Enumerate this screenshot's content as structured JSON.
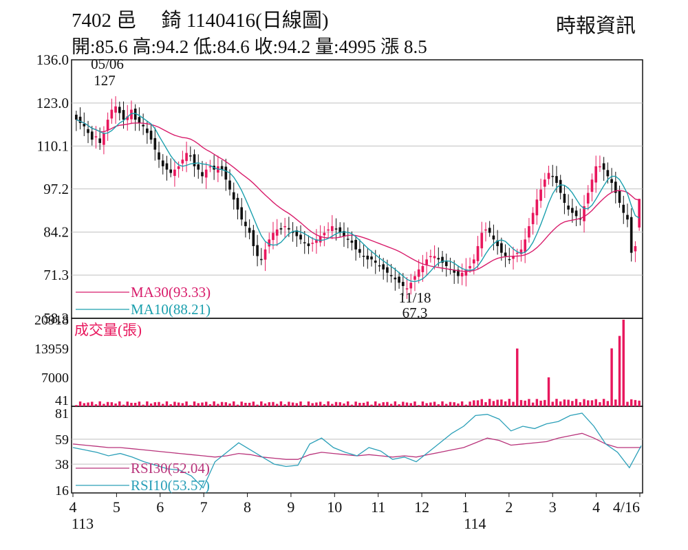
{
  "header": {
    "title": "7402 邑　 錡 1140416(日線圖)",
    "quote": "開:85.6 高:94.2 低:84.6 收:94.2 量:4995 漲 8.5",
    "source": "時報資訊"
  },
  "colors": {
    "up": "#e8175d",
    "down": "#111111",
    "ma30": "#d81b6a",
    "ma10": "#1a9fad",
    "grid": "#bfbfbf",
    "volume": "#e8175d",
    "rsi30": "#b8327a",
    "rsi10": "#2a9fb8"
  },
  "chart_data": [
    {
      "type": "candlestick",
      "panel": "price",
      "ylim": [
        58.3,
        136.0
      ],
      "yticks": [
        "136.0",
        "123.0",
        "110.1",
        "97.2",
        "84.2",
        "71.3",
        "58.3"
      ],
      "grid": true,
      "annotations": [
        {
          "date": "05/06",
          "value": "127"
        },
        {
          "date": "11/18",
          "value": "67.3"
        }
      ],
      "legend": [
        "MA30(93.33)",
        "MA10(88.21)"
      ],
      "last_bar": {
        "open": 85.6,
        "high": 94.2,
        "low": 84.6,
        "close": 94.2
      },
      "close_series": [
        118,
        117,
        116,
        114,
        112,
        113,
        111,
        114,
        118,
        121,
        122,
        120,
        118,
        119,
        121,
        118,
        117,
        116,
        114,
        112,
        109,
        106,
        104,
        103,
        102,
        103,
        104,
        106,
        108,
        107,
        104,
        103,
        101,
        103,
        104,
        103,
        104,
        103,
        100,
        97,
        94,
        91,
        88,
        86,
        84,
        80,
        77,
        76,
        79,
        82,
        84,
        85,
        85,
        86,
        85,
        84,
        83,
        82,
        81,
        80,
        81,
        82,
        83,
        84,
        85,
        86,
        85,
        84,
        83,
        82,
        81,
        79,
        78,
        77,
        76,
        76,
        75,
        74,
        73,
        72,
        71,
        70,
        69,
        68,
        67.3,
        69,
        71,
        73,
        74,
        76,
        77,
        77,
        76,
        75,
        74,
        73,
        72,
        71,
        72,
        73,
        74,
        76,
        80,
        84,
        85,
        84,
        82,
        80,
        78,
        77,
        76,
        77,
        78,
        79,
        82,
        86,
        90,
        94,
        97,
        100,
        102,
        101,
        99,
        96,
        93,
        91,
        90,
        89,
        88,
        92,
        96,
        100,
        104,
        104,
        103,
        101,
        99,
        96,
        93,
        90,
        88,
        78,
        80,
        94.2
      ],
      "x_labels": [
        "4",
        "5",
        "6",
        "7",
        "8",
        "9",
        "10",
        "11",
        "12",
        "1",
        "2",
        "3",
        "4",
        "4/16"
      ],
      "x_sublabels": [
        {
          "label": "113",
          "under": "4"
        },
        {
          "label": "114",
          "under": "1"
        }
      ]
    },
    {
      "type": "bar",
      "panel": "volume",
      "title": "成交量(張)",
      "ylim": [
        0,
        20918
      ],
      "yticks": [
        "20918",
        "13959",
        "7000",
        "41"
      ],
      "spikes": [
        {
          "pos": 0.785,
          "value": 13959
        },
        {
          "pos": 0.84,
          "value": 7000
        },
        {
          "pos": 0.95,
          "value": 14000
        },
        {
          "pos": 0.965,
          "value": 17000
        },
        {
          "pos": 0.975,
          "value": 20918
        }
      ]
    },
    {
      "type": "line",
      "panel": "rsi",
      "ylim": [
        16,
        81
      ],
      "yticks": [
        "81",
        "59",
        "38",
        "16"
      ],
      "legend": [
        "RSI30(52.04)",
        "RSI10(53.57)"
      ],
      "series": [
        {
          "name": "RSI30(52.04)",
          "values": [
            55,
            54,
            53,
            52,
            52,
            51,
            50,
            49,
            48,
            47,
            46,
            45,
            44,
            45,
            47,
            46,
            44,
            43,
            42,
            42,
            46,
            48,
            47,
            46,
            45,
            46,
            45,
            44,
            45,
            44,
            46,
            48,
            50,
            52,
            56,
            60,
            58,
            54,
            55,
            56,
            57,
            60,
            62,
            64,
            60,
            55,
            52,
            52,
            52.04
          ]
        },
        {
          "name": "RSI10(53.57)",
          "values": [
            52,
            50,
            48,
            45,
            47,
            44,
            40,
            37,
            34,
            33,
            28,
            18,
            40,
            48,
            56,
            50,
            44,
            38,
            36,
            37,
            55,
            60,
            52,
            48,
            45,
            52,
            49,
            42,
            44,
            40,
            48,
            56,
            64,
            70,
            79,
            80,
            76,
            66,
            70,
            68,
            72,
            74,
            79,
            81,
            70,
            55,
            48,
            35,
            53.57
          ]
        }
      ]
    }
  ]
}
